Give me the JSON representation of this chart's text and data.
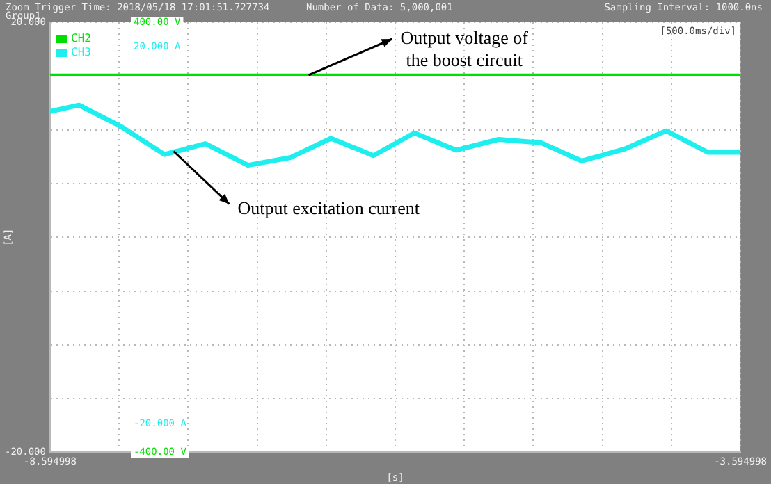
{
  "chart_data": {
    "type": "line",
    "ylabel": "[A]",
    "xlabel": "[s]",
    "annotations": [
      "Zoom Trigger Time: 2018/05/18 17:01:51.727734",
      "Number of Data: 5,000,001",
      "Group1",
      "Sampling Interval: 1000.0ns",
      "[500.0ms/div]",
      "20.000 A",
      "-20.000 A",
      "Output voltage of the boost circuit",
      {
        "text": "Output excitation current",
        "x": -7.7,
        "y": 8.0
      }
    ],
    "series": [
      {
        "name": "CH2",
        "color": "#00e000",
        "axis": "y2",
        "x": [
          -8.594,
          -7.5,
          -6.5,
          -5.5,
          -4.5,
          -3.595
        ],
        "values": [
          302,
          302,
          302,
          302,
          302,
          302
        ]
      },
      {
        "name": "CH3",
        "color": "#1eeeee",
        "x": [
          -8.594,
          -8.386,
          -8.081,
          -7.767,
          -7.47,
          -7.162,
          -6.858,
          -6.561,
          -6.253,
          -5.957,
          -5.653,
          -5.346,
          -5.041,
          -4.744,
          -4.436,
          -4.133,
          -3.83,
          -3.595
        ],
        "values": [
          11.7,
          12.3,
          10.3,
          7.7,
          8.7,
          6.7,
          7.4,
          9.2,
          7.6,
          9.7,
          8.1,
          9.1,
          8.8,
          7.1,
          8.2,
          9.9,
          7.9,
          7.9
        ]
      }
    ],
    "xlim": [
      -8.594998,
      -3.594998
    ],
    "xticks": [
      {
        "value": -8.594998,
        "label": "-8.594998"
      },
      {
        "value": -8.094998,
        "label": null
      },
      {
        "value": -7.594998,
        "label": null
      },
      {
        "value": -7.094998,
        "label": null
      },
      {
        "value": -6.594998,
        "label": null
      },
      {
        "value": -6.094998,
        "label": null
      },
      {
        "value": -5.594998,
        "label": null
      },
      {
        "value": -5.094998,
        "label": null
      },
      {
        "value": -4.594998,
        "label": null
      },
      {
        "value": -4.094998,
        "label": null
      },
      {
        "value": -3.594998,
        "label": "-3.594998"
      }
    ],
    "ylim": [
      -20,
      20
    ],
    "yticks": [
      {
        "value": -20,
        "label": "-20.000"
      },
      {
        "value": -15,
        "label": null
      },
      {
        "value": -10,
        "label": null
      },
      {
        "value": -5,
        "label": null
      },
      {
        "value": 0,
        "label": null
      },
      {
        "value": 5,
        "label": null
      },
      {
        "value": 10,
        "label": null
      },
      {
        "value": 15,
        "label": null
      },
      {
        "value": 20,
        "label": "20.000"
      }
    ],
    "y2lim": [
      -400,
      400
    ],
    "y2ticks": [
      {
        "value": -400,
        "label": "-400.00 V"
      },
      {
        "value": 400,
        "label": "400.00 V"
      }
    ],
    "grid": true,
    "legend": "top left",
    "marker": "none",
    "line_style": "solid"
  }
}
